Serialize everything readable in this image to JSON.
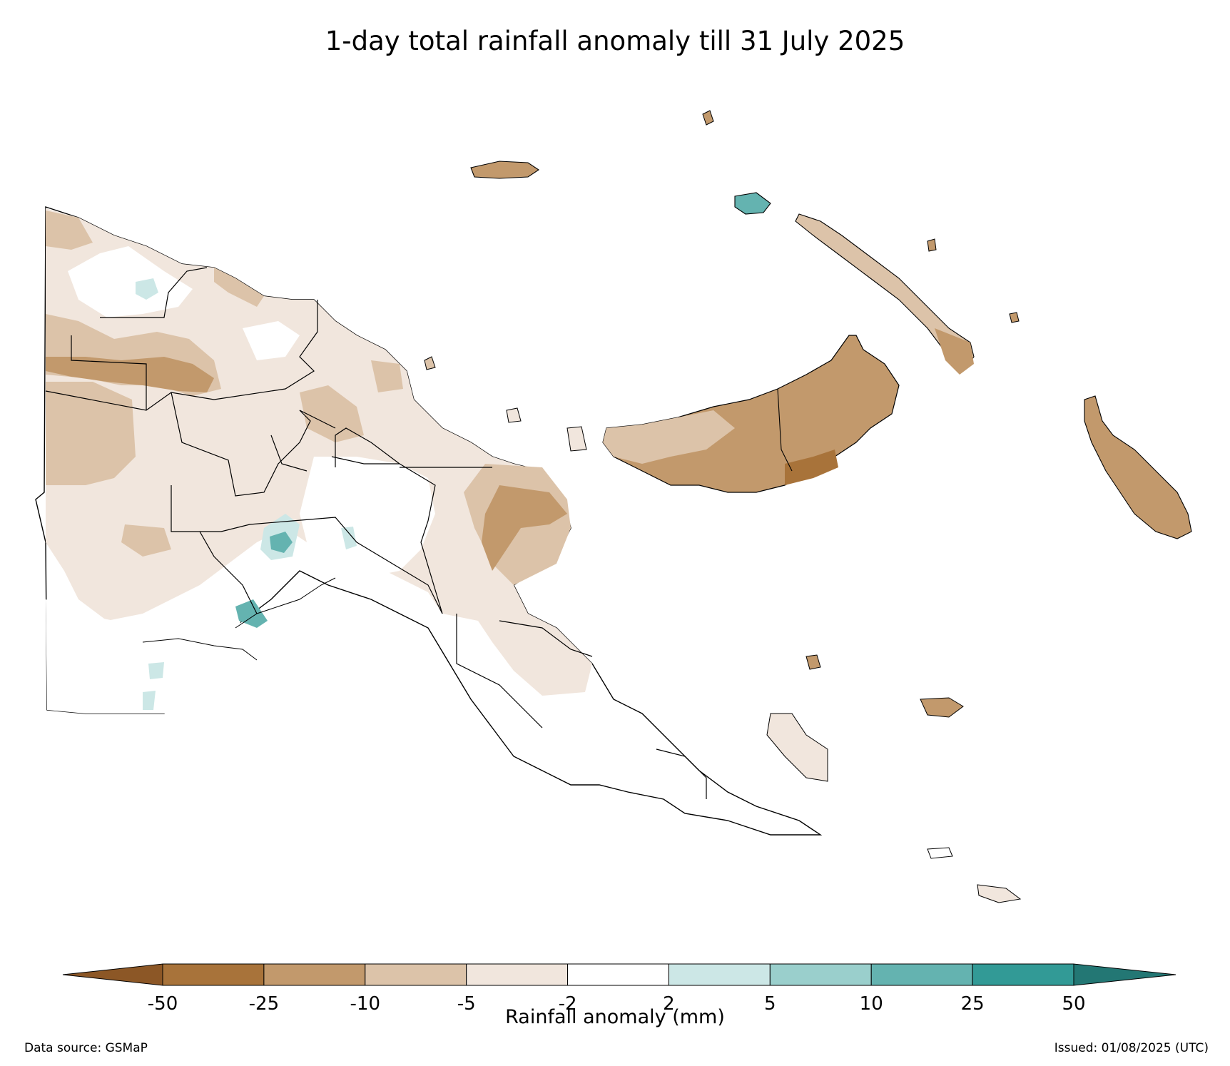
{
  "title": "1-day total rainfall anomaly till 31 July 2025",
  "colorbar": {
    "label": "Rainfall anomaly (mm)",
    "ticks": [
      "-50",
      "-25",
      "-10",
      "-5",
      "-2",
      "2",
      "5",
      "10",
      "25",
      "50"
    ],
    "colors": [
      "#8c5726",
      "#a8733a",
      "#c2996c",
      "#dcc3a9",
      "#f1e6dd",
      "#ffffff",
      "#cce7e6",
      "#9acfcc",
      "#64b3b0",
      "#329a96",
      "#237774"
    ]
  },
  "footer": {
    "source": "Data source: GSMaP",
    "issued": "Issued: 01/08/2025 (UTC)"
  }
}
